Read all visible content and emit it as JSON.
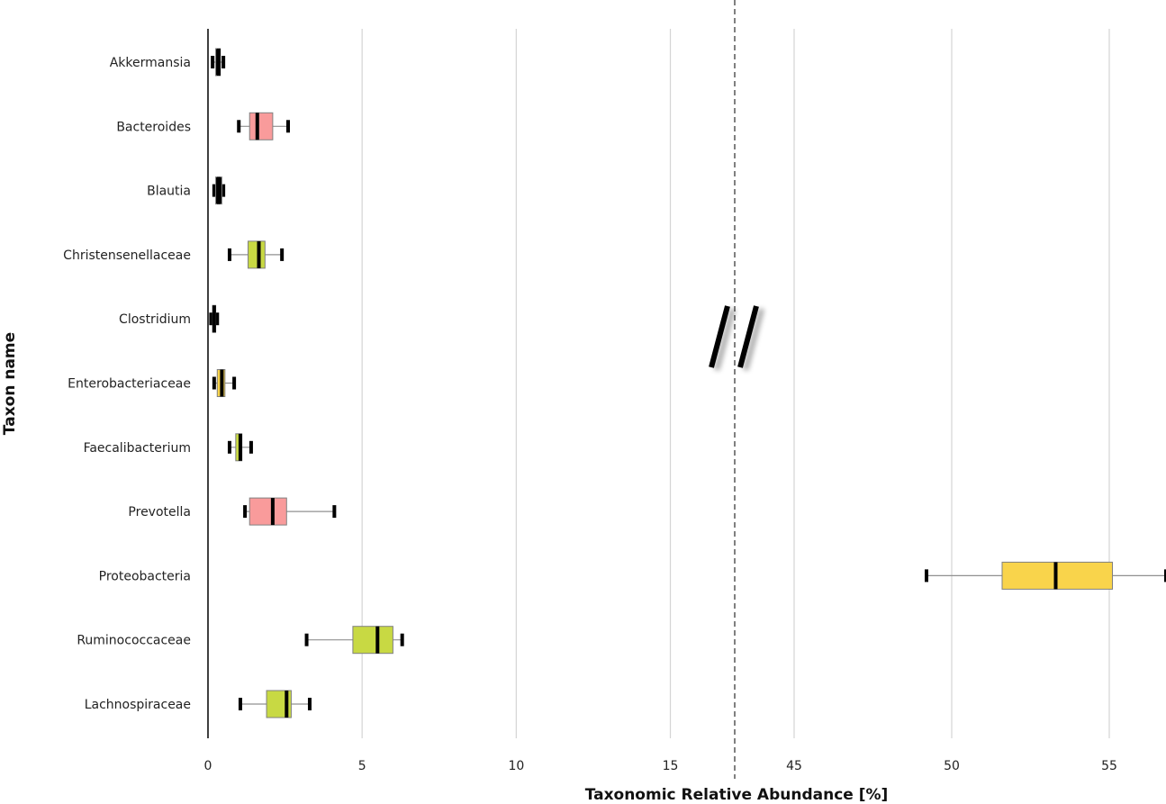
{
  "chart_data": {
    "type": "boxplot",
    "xlabel": "Taxonomic Relative Abundance [%]",
    "ylabel": "Taxon name",
    "axis_break": true,
    "segments": [
      {
        "range": [
          0,
          17
        ],
        "ticks": [
          0,
          5,
          10,
          15
        ]
      },
      {
        "range": [
          42,
          57
        ],
        "ticks": [
          45,
          50,
          55
        ]
      }
    ],
    "grid": "vertical",
    "colors": {
      "pink": "#f99b9b",
      "green": "#c8d943",
      "yellow": "#f9d44b",
      "black": "#000000"
    },
    "categories": [
      {
        "name": "Akkermansia",
        "min": 0.15,
        "q1": 0.25,
        "median": 0.35,
        "q3": 0.4,
        "max": 0.5,
        "color": "black"
      },
      {
        "name": "Bacteroides",
        "min": 1.0,
        "q1": 1.35,
        "median": 1.6,
        "q3": 2.1,
        "max": 2.6,
        "color": "pink"
      },
      {
        "name": "Blautia",
        "min": 0.2,
        "q1": 0.25,
        "median": 0.35,
        "q3": 0.45,
        "max": 0.5,
        "color": "black"
      },
      {
        "name": "Christensenellaceae",
        "min": 0.7,
        "q1": 1.3,
        "median": 1.65,
        "q3": 1.85,
        "max": 2.4,
        "color": "green"
      },
      {
        "name": "Clostridium",
        "min": 0.1,
        "q1": 0.15,
        "median": 0.2,
        "q3": 0.25,
        "max": 0.3,
        "color": "black"
      },
      {
        "name": "Enterobacteriaceae",
        "min": 0.2,
        "q1": 0.3,
        "median": 0.45,
        "q3": 0.55,
        "max": 0.85,
        "color": "yellow"
      },
      {
        "name": "Faecalibacterium",
        "min": 0.7,
        "q1": 0.9,
        "median": 1.05,
        "q3": 1.1,
        "max": 1.4,
        "color": "green"
      },
      {
        "name": "Prevotella",
        "min": 1.2,
        "q1": 1.35,
        "median": 2.1,
        "q3": 2.55,
        "max": 4.1,
        "color": "pink"
      },
      {
        "name": "Proteobacteria",
        "min": 49.2,
        "q1": 51.6,
        "median": 53.3,
        "q3": 55.1,
        "max": 56.8,
        "color": "yellow"
      },
      {
        "name": "Ruminococcaceae",
        "min": 3.2,
        "q1": 4.7,
        "median": 5.5,
        "q3": 6.0,
        "max": 6.3,
        "color": "green"
      },
      {
        "name": "Lachnospiraceae",
        "min": 1.05,
        "q1": 1.9,
        "median": 2.55,
        "q3": 2.7,
        "max": 3.3,
        "color": "green"
      }
    ]
  }
}
